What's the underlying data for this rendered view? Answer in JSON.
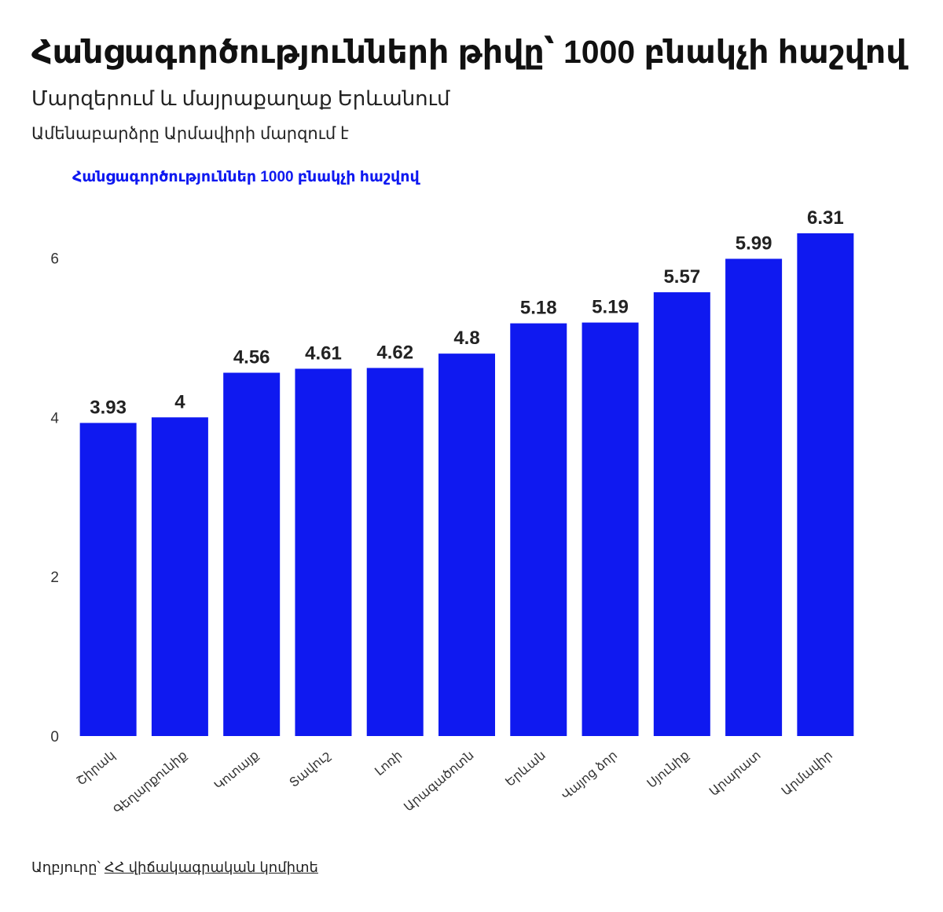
{
  "chart_data": {
    "type": "bar",
    "title": "Հանցագործությունների թիվը՝ 1000 բնակչի հաշվով",
    "subtitle": "Մարզերում և մայրաքաղաք Երևանում",
    "note": "Ամենաբարձրը Արմավիրի մարզում է",
    "legend": "Հանցագործություններ 1000 բնակչի հաշվով",
    "legend_position": "top-left",
    "categories": [
      "Շիրակ",
      "Գեղարքունիք",
      "Կոտայք",
      "Տավուշ",
      "Լոռի",
      "Արագածոտն",
      "Երևան",
      "Վայոց ձոր",
      "Սյունիք",
      "Արարատ",
      "Արմավիր"
    ],
    "series": [
      {
        "name": "Հանցագործություններ 1000 բնակչի հաշվով",
        "values": [
          3.93,
          4,
          4.56,
          4.61,
          4.62,
          4.8,
          5.18,
          5.19,
          5.57,
          5.99,
          6.31
        ],
        "labels": [
          "3.93",
          "4",
          "4.56",
          "4.61",
          "4.62",
          "4.8",
          "5.18",
          "5.19",
          "5.57",
          "5.99",
          "6.31"
        ]
      }
    ],
    "ylim": [
      0,
      6.31
    ],
    "yticks": [
      0,
      2,
      4,
      6
    ],
    "ytick_labels": [
      "0",
      "2",
      "4",
      "6"
    ],
    "grid": false,
    "bar_color": "#0f19f0"
  },
  "source": {
    "label": "Աղբյուրը՝",
    "link_text": "ՀՀ վիճակագրական կոմիտե"
  }
}
